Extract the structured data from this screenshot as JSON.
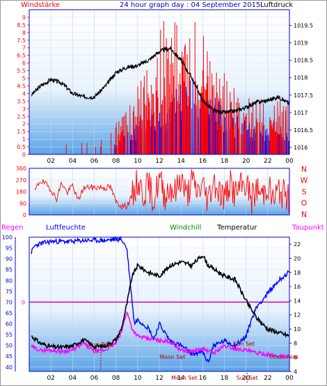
{
  "header": {
    "left_label": "Windstärke",
    "title": "24 hour graph day : 04 September 2015",
    "right_label": "Luftdruck"
  },
  "colors": {
    "wind": "#ff0000",
    "gust": "#0000ff",
    "pressure": "#000000",
    "direction": "#ff0000",
    "humidity": "#0000ff",
    "windchill": "#008800",
    "temperature": "#000000",
    "dewpoint": "#ff00ff",
    "zero_line": "#cc00cc",
    "axis": "#0000cc",
    "sunmoon": "#aa0000"
  },
  "chart_data": [
    {
      "type": "line",
      "title": "24 hour graph day : 04 September 2015",
      "xlabel": "",
      "ylabel": "Windstärke",
      "y2label": "Luftdruck",
      "x_ticks": [
        "02",
        "04",
        "06",
        "08",
        "10",
        "12",
        "14",
        "16",
        "18",
        "20",
        "22",
        "00"
      ],
      "ylim": [
        0,
        9.5
      ],
      "y_ticks": [
        "0",
        "0.5",
        "1",
        "1.5",
        "2",
        "2.5",
        "3",
        "3.5",
        "4",
        "4.5",
        "5",
        "5.5",
        "6",
        "6.5",
        "7",
        "7.5",
        "8",
        "8.5",
        "9"
      ],
      "y2lim": [
        1015.8,
        1019.95
      ],
      "y2_ticks": [
        "1016",
        "1016.5",
        "1017",
        "1017.5",
        "1018",
        "1018.5",
        "1019",
        "1019.5"
      ],
      "pressure": {
        "x": [
          0.2,
          1,
          2,
          3,
          4,
          5,
          6,
          7,
          8,
          9,
          10,
          11,
          12,
          13,
          14,
          15,
          16,
          17,
          18,
          19,
          20,
          21,
          22,
          23,
          24
        ],
        "y": [
          1017.5,
          1017.75,
          1017.95,
          1017.85,
          1017.55,
          1017.45,
          1017.45,
          1017.75,
          1018.15,
          1018.3,
          1018.35,
          1018.5,
          1018.75,
          1018.85,
          1018.5,
          1018.0,
          1017.35,
          1017.05,
          1017.0,
          1017.05,
          1017.15,
          1017.3,
          1017.35,
          1017.45,
          1017.25
        ]
      },
      "wind": {
        "x": [
          0,
          1,
          2,
          3,
          4,
          5,
          6,
          7,
          7.9,
          8.5,
          9,
          9.5,
          10,
          10.5,
          11,
          11.5,
          12,
          12.5,
          13,
          13.5,
          14,
          14.5,
          15,
          15.5,
          16,
          16.5,
          17,
          17.5,
          18,
          18.5,
          19,
          19.5,
          20,
          20.5,
          21,
          21.5,
          22,
          22.5,
          23,
          23.5,
          24
        ],
        "y": [
          0.8,
          0.5,
          0.9,
          0.6,
          0.8,
          0.9,
          0.7,
          1.0,
          1.3,
          1.6,
          1.8,
          2.2,
          2.8,
          3.3,
          3.9,
          4.3,
          5.2,
          5.7,
          5.3,
          5.8,
          6.1,
          6.4,
          6.0,
          5.6,
          5.1,
          4.8,
          4.4,
          3.9,
          3.4,
          3.0,
          2.7,
          2.5,
          2.4,
          2.6,
          2.5,
          2.4,
          2.3,
          2.6,
          2.4,
          2.3,
          2.5
        ]
      },
      "gust": {
        "x": [
          0,
          1,
          2,
          3,
          4,
          5,
          6,
          7,
          8,
          9,
          10,
          11,
          12,
          13,
          14,
          15,
          16,
          17,
          18,
          19,
          20,
          21,
          22,
          23,
          24
        ],
        "y": [
          0.3,
          0.2,
          0.3,
          0.2,
          0.2,
          0.3,
          0.2,
          0.3,
          0.5,
          1.0,
          1.5,
          1.9,
          2.3,
          2.6,
          3.2,
          3.5,
          3.0,
          2.6,
          2.2,
          1.8,
          1.5,
          1.3,
          1.2,
          1.1,
          1.0
        ]
      }
    },
    {
      "type": "line",
      "title": "",
      "ylabel": "",
      "y_ticks": [
        "0",
        "90",
        "180",
        "270",
        "360"
      ],
      "ylim": [
        0,
        360
      ],
      "right_labels": [
        "N",
        "W",
        "S",
        "O",
        "N"
      ],
      "direction": {
        "x": [
          0.5,
          1,
          1.5,
          2,
          2.5,
          3,
          3.5,
          4,
          4.5,
          5,
          5.5,
          6,
          6.5,
          7,
          7.5,
          8,
          8.5,
          9,
          9.5,
          10,
          10.5,
          11,
          11.5,
          12,
          12.5,
          13,
          13.5,
          14,
          14.5,
          15,
          15.5,
          16,
          16.5,
          17,
          17.5,
          18,
          18.5,
          19,
          19.5,
          20,
          20.5,
          21,
          21.5,
          22,
          22.5,
          23,
          23.5,
          24
        ],
        "y": [
          180,
          265,
          240,
          200,
          120,
          250,
          170,
          230,
          110,
          205,
          215,
          210,
          215,
          210,
          215,
          100,
          70,
          70,
          140,
          260,
          160,
          230,
          110,
          280,
          150,
          220,
          170,
          300,
          140,
          260,
          180,
          230,
          120,
          270,
          190,
          130,
          240,
          160,
          210,
          250,
          120,
          200,
          150,
          240,
          110,
          190,
          160,
          120
        ]
      }
    },
    {
      "type": "line",
      "title": "",
      "legend": [
        "Regen",
        "Luftfeuchte",
        "Windchill",
        "Temperatur",
        "Taupunkt"
      ],
      "y_ticks_left": [
        "40",
        "45",
        "50",
        "55",
        "60",
        "65",
        "70",
        "75",
        "80",
        "85",
        "90",
        "95",
        "100"
      ],
      "ylim_left": [
        38,
        100
      ],
      "zero_label": "0",
      "y_ticks_right": [
        "4",
        "6",
        "8",
        "10",
        "12",
        "14",
        "16",
        "18",
        "20",
        "22"
      ],
      "ylim_right": [
        4,
        23
      ],
      "humidity": {
        "x": [
          0.2,
          0.5,
          1,
          2,
          3,
          4,
          5,
          6,
          7,
          8,
          8.5,
          9,
          9.3,
          9.7,
          10,
          11,
          11.5,
          12,
          13,
          14,
          15,
          16,
          16.5,
          17,
          18,
          19,
          20,
          20.5,
          21,
          22,
          23,
          24
        ],
        "y": [
          93,
          96,
          97,
          98,
          98,
          98,
          98.5,
          98.5,
          98.5,
          99,
          99,
          95,
          80,
          60,
          62,
          58,
          53,
          60,
          52,
          50,
          46,
          47,
          42,
          50,
          52,
          50,
          54,
          62,
          68,
          74,
          80,
          84
        ]
      },
      "temperature": {
        "x": [
          0.2,
          1,
          2,
          3,
          4,
          5,
          6,
          7,
          8,
          8.5,
          9,
          9.5,
          10,
          11,
          12,
          13,
          14,
          15,
          16,
          16.5,
          17,
          18,
          19,
          20,
          21,
          22,
          23,
          24
        ],
        "y": [
          9.0,
          8.0,
          7.5,
          7.4,
          7.6,
          8.5,
          7.5,
          7.6,
          8.5,
          10.0,
          13.5,
          17.5,
          19.0,
          18.0,
          17.5,
          19.0,
          19.5,
          19.0,
          20.5,
          19.0,
          18.5,
          17.5,
          17.0,
          14.0,
          11.5,
          10.0,
          9.5,
          9.0
        ]
      },
      "dewpoint": {
        "x": [
          0.2,
          1,
          2,
          3,
          4,
          5,
          6,
          7,
          8,
          8.5,
          9,
          9.5,
          10,
          11,
          12,
          13,
          14,
          15,
          16,
          17,
          18,
          19,
          20,
          21,
          22,
          23,
          24
        ],
        "y": [
          7.5,
          7.0,
          7.0,
          6.8,
          7.0,
          8.0,
          6.8,
          7.0,
          8.0,
          9.5,
          12.5,
          10.0,
          9.0,
          8.6,
          8.4,
          8.2,
          7.0,
          6.8,
          7.2,
          6.6,
          7.6,
          7.2,
          7.0,
          6.6,
          6.4,
          6.2,
          6.1
        ]
      },
      "annotations": [
        {
          "text": "Sun Rise",
          "x": 6.6
        },
        {
          "text": "Moon Set",
          "x": 13.2
        },
        {
          "text": "Moon Set",
          "x": 14.3
        },
        {
          "text": "Sun Set",
          "x": 19.8
        },
        {
          "text": "Sun Set",
          "x": 20.1
        },
        {
          "text": "Moon Rise",
          "x": 23.5
        },
        {
          "text": "Sun Rise",
          "x": 6.9
        }
      ]
    }
  ]
}
